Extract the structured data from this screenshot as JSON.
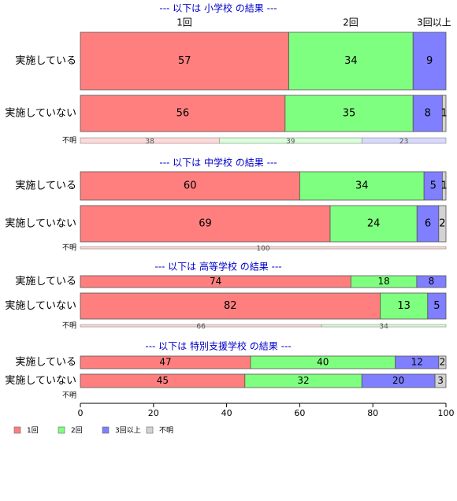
{
  "chart_data": {
    "type": "bar",
    "orientation": "horizontal",
    "stacked": true,
    "xlim": [
      0,
      100
    ],
    "x_ticks": [
      0,
      20,
      40,
      60,
      80,
      100
    ],
    "column_headers": [
      "1回",
      "2回",
      "3回以上"
    ],
    "legend": {
      "placement": "bottom-left",
      "entries": [
        {
          "label": "1回",
          "color": "#ff7f7f"
        },
        {
          "label": "2回",
          "color": "#7fff7f"
        },
        {
          "label": "3回以上",
          "color": "#7f7fff"
        },
        {
          "label": "不明",
          "color": "#d3d3d3"
        }
      ]
    },
    "panels": [
      {
        "title": "--- 以下は 小学校 の結果 ---",
        "rows": [
          {
            "label": "実施している",
            "values": [
              57,
              34,
              9,
              0
            ],
            "labels": [
              "57",
              "34",
              "9",
              ""
            ]
          },
          {
            "label": "実施していない",
            "values": [
              56,
              35,
              8,
              1
            ],
            "labels": [
              "56",
              "35",
              "8",
              "1"
            ]
          },
          {
            "label": "不明",
            "values": [
              38,
              39,
              23,
              0
            ],
            "labels": [
              "38",
              "39",
              "23",
              ""
            ]
          }
        ]
      },
      {
        "title": "--- 以下は 中学校 の結果 ---",
        "rows": [
          {
            "label": "実施している",
            "values": [
              60,
              34,
              5,
              1
            ],
            "labels": [
              "60",
              "34",
              "5",
              "1"
            ]
          },
          {
            "label": "実施していない",
            "values": [
              69,
              24,
              6,
              2
            ],
            "labels": [
              "69",
              "24",
              "6",
              "2"
            ]
          },
          {
            "label": "不明",
            "values": [
              100,
              0,
              0,
              0
            ],
            "labels": [
              "100",
              "",
              "",
              ""
            ]
          }
        ]
      },
      {
        "title": "--- 以下は 高等学校 の結果 ---",
        "rows": [
          {
            "label": "実施している",
            "values": [
              74,
              18,
              8,
              0
            ],
            "labels": [
              "74",
              "18",
              "8",
              ""
            ]
          },
          {
            "label": "実施していない",
            "values": [
              82,
              13,
              5,
              0
            ],
            "labels": [
              "82",
              "13",
              "5",
              ""
            ]
          },
          {
            "label": "不明",
            "values": [
              66,
              34,
              0,
              0
            ],
            "labels": [
              "66",
              "34",
              "",
              ""
            ]
          }
        ]
      },
      {
        "title": "--- 以下は 特別支援学校 の結果 ---",
        "rows": [
          {
            "label": "実施している",
            "values": [
              47,
              40,
              12,
              2
            ],
            "labels": [
              "47",
              "40",
              "12",
              "2"
            ]
          },
          {
            "label": "実施していない",
            "values": [
              45,
              32,
              20,
              3
            ],
            "labels": [
              "45",
              "32",
              "20",
              "3"
            ]
          },
          {
            "label": "不明",
            "values": [
              0,
              0,
              0,
              0
            ],
            "labels": [
              "",
              "",
              "",
              ""
            ]
          }
        ]
      }
    ]
  }
}
